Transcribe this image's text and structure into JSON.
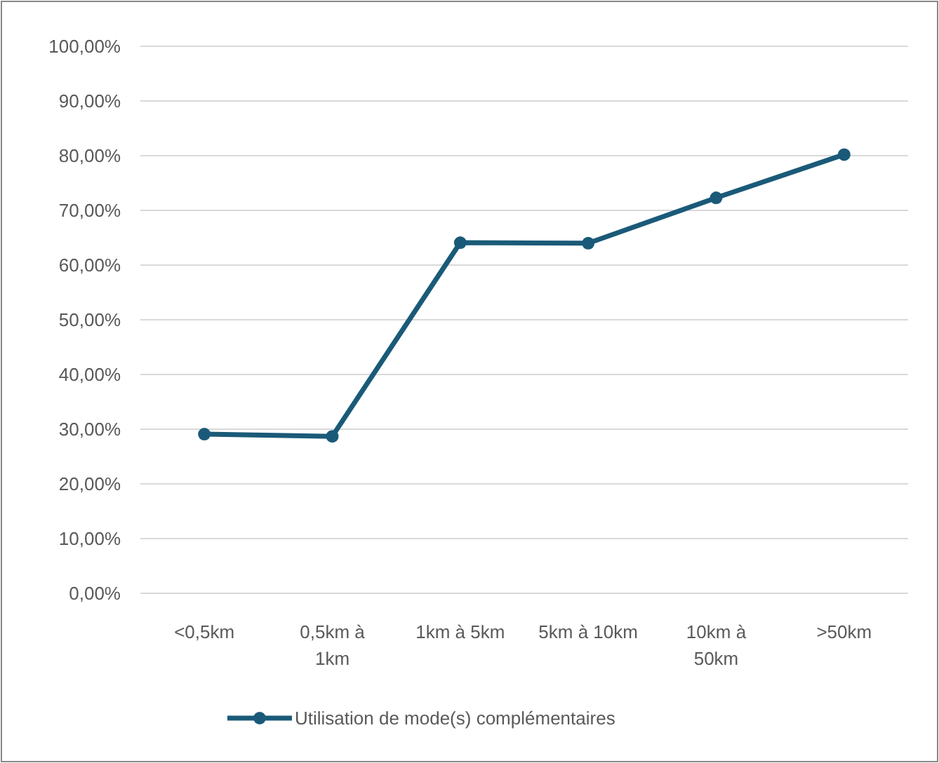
{
  "chart_data": {
    "type": "line",
    "categories": [
      "<0,5km",
      "0,5km à 1km",
      "1km à 5km",
      "5km à 10km",
      "10km à 50km",
      ">50km"
    ],
    "series": [
      {
        "name": "Utilisation de mode(s) complémentaires",
        "color": "#1a5a78",
        "values": [
          29.1,
          28.7,
          64.1,
          64.0,
          72.3,
          80.2
        ]
      }
    ],
    "ylim": [
      0,
      100
    ],
    "yticks": [
      {
        "value": 0,
        "label": "0,00%"
      },
      {
        "value": 10,
        "label": "10,00%"
      },
      {
        "value": 20,
        "label": "20,00%"
      },
      {
        "value": 30,
        "label": "30,00%"
      },
      {
        "value": 40,
        "label": "40,00%"
      },
      {
        "value": 50,
        "label": "50,00%"
      },
      {
        "value": 60,
        "label": "60,00%"
      },
      {
        "value": 70,
        "label": "70,00%"
      },
      {
        "value": 80,
        "label": "80,00%"
      },
      {
        "value": 90,
        "label": "90,00%"
      },
      {
        "value": 100,
        "label": "100,00%"
      }
    ],
    "grid": "y",
    "legend": "bottom",
    "marker": "circle",
    "line_style": "solid"
  }
}
